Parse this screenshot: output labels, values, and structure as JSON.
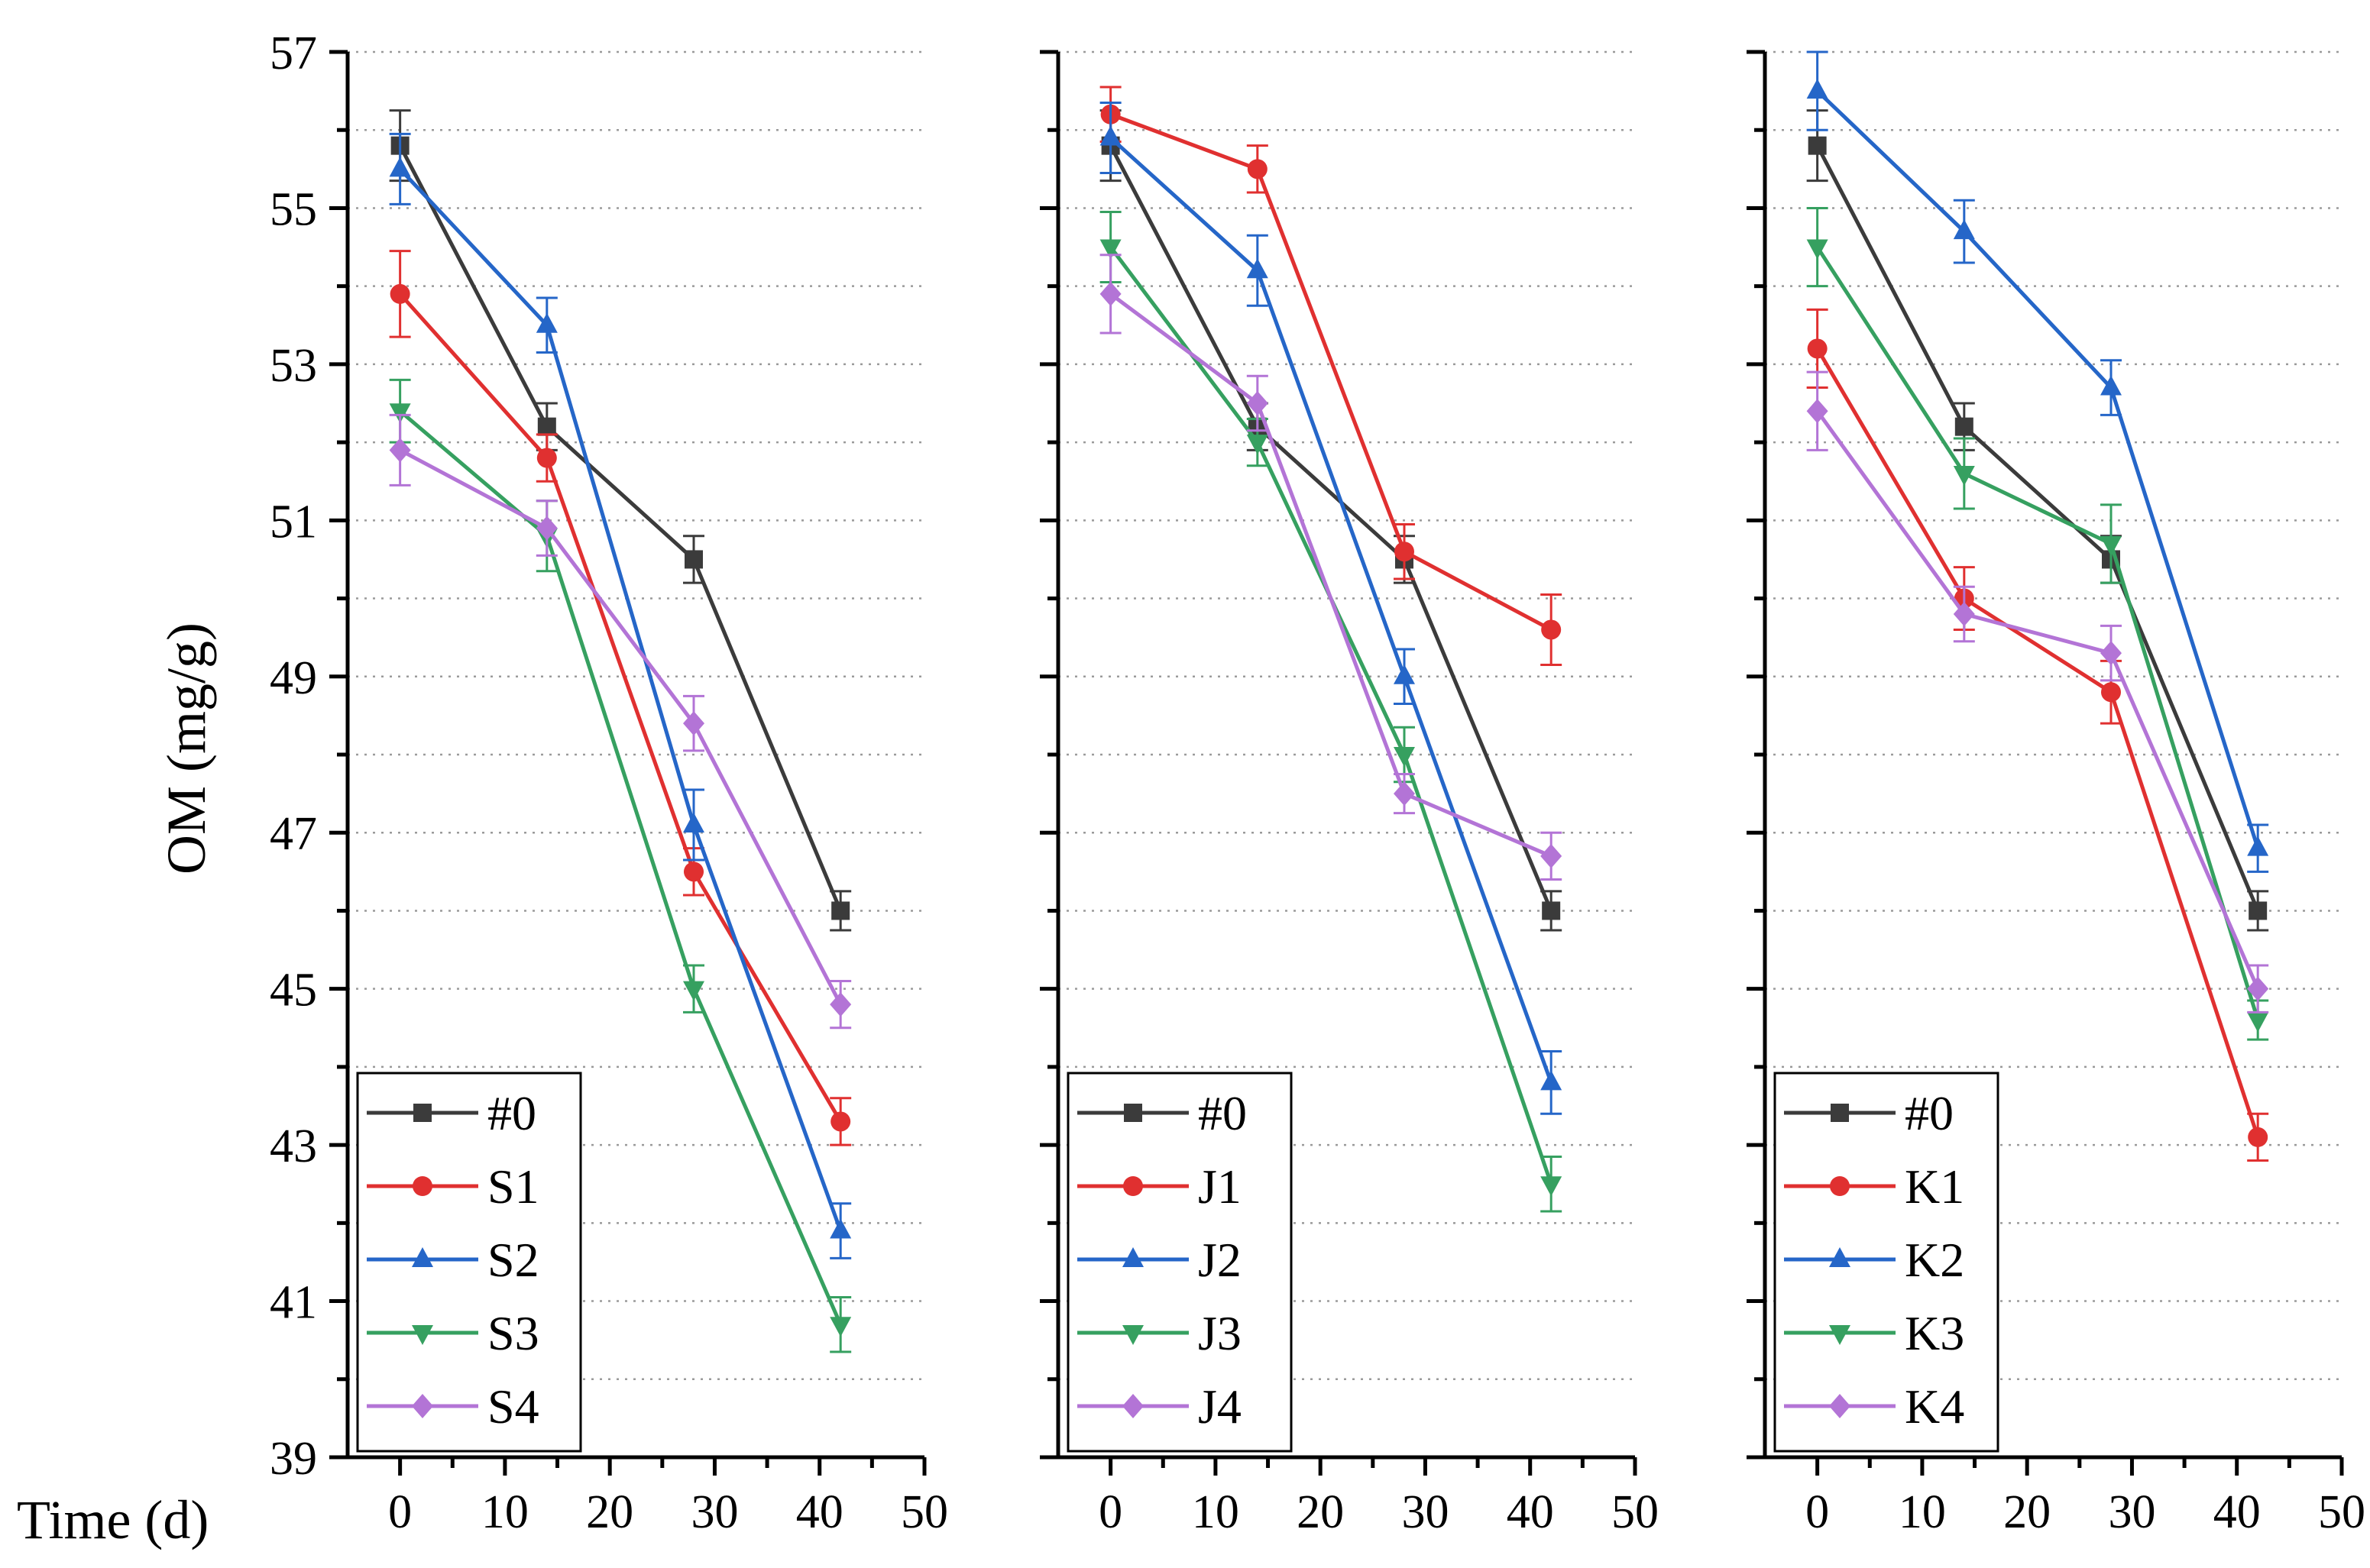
{
  "figure": {
    "ylabel": "OM (mg/g)",
    "xlabel": "Time (d)"
  },
  "chart_data": [
    {
      "type": "line",
      "xlim": [
        -5,
        50
      ],
      "ylim": [
        39,
        57
      ],
      "x_ticks": [
        0,
        10,
        20,
        30,
        40,
        50
      ],
      "y_ticks": [
        39,
        41,
        43,
        45,
        47,
        49,
        51,
        53,
        55,
        57
      ],
      "grid": "horizontal-dotted",
      "legend_position": "bottom-left",
      "series": [
        {
          "name": "#0",
          "color": "#3b3b3b",
          "marker": "square",
          "x": [
            0,
            14,
            28,
            42
          ],
          "y": [
            55.8,
            52.2,
            50.5,
            46.0
          ],
          "err": [
            0.45,
            0.3,
            0.3,
            0.25
          ]
        },
        {
          "name": "S1",
          "color": "#e03030",
          "marker": "circle",
          "x": [
            0,
            14,
            28,
            42
          ],
          "y": [
            53.9,
            51.8,
            46.5,
            43.3
          ],
          "err": [
            0.55,
            0.3,
            0.3,
            0.3
          ]
        },
        {
          "name": "S2",
          "color": "#2566c8",
          "marker": "triangle-up",
          "x": [
            0,
            14,
            28,
            42
          ],
          "y": [
            55.5,
            53.5,
            47.1,
            41.9
          ],
          "err": [
            0.45,
            0.35,
            0.45,
            0.35
          ]
        },
        {
          "name": "S3",
          "color": "#36a060",
          "marker": "triangle-down",
          "x": [
            0,
            14,
            28,
            42
          ],
          "y": [
            52.4,
            50.8,
            45.0,
            40.7
          ],
          "err": [
            0.4,
            0.45,
            0.3,
            0.35
          ]
        },
        {
          "name": "S4",
          "color": "#b374d6",
          "marker": "diamond",
          "x": [
            0,
            14,
            28,
            42
          ],
          "y": [
            51.9,
            50.9,
            48.4,
            44.8
          ],
          "err": [
            0.45,
            0.35,
            0.35,
            0.3
          ]
        }
      ]
    },
    {
      "type": "line",
      "xlim": [
        -5,
        50
      ],
      "ylim": [
        39,
        57
      ],
      "x_ticks": [
        0,
        10,
        20,
        30,
        40,
        50
      ],
      "y_ticks": [
        39,
        41,
        43,
        45,
        47,
        49,
        51,
        53,
        55,
        57
      ],
      "grid": "horizontal-dotted",
      "legend_position": "bottom-left",
      "series": [
        {
          "name": "#0",
          "color": "#3b3b3b",
          "marker": "square",
          "x": [
            0,
            14,
            28,
            42
          ],
          "y": [
            55.8,
            52.2,
            50.5,
            46.0
          ],
          "err": [
            0.45,
            0.3,
            0.3,
            0.25
          ]
        },
        {
          "name": "J1",
          "color": "#e03030",
          "marker": "circle",
          "x": [
            0,
            14,
            28,
            42
          ],
          "y": [
            56.2,
            55.5,
            50.6,
            49.6
          ],
          "err": [
            0.35,
            0.3,
            0.35,
            0.45
          ]
        },
        {
          "name": "J2",
          "color": "#2566c8",
          "marker": "triangle-up",
          "x": [
            0,
            14,
            28,
            42
          ],
          "y": [
            55.9,
            54.2,
            49.0,
            43.8
          ],
          "err": [
            0.45,
            0.45,
            0.35,
            0.4
          ]
        },
        {
          "name": "J3",
          "color": "#36a060",
          "marker": "triangle-down",
          "x": [
            0,
            14,
            28,
            42
          ],
          "y": [
            54.5,
            52.0,
            48.0,
            42.5
          ],
          "err": [
            0.45,
            0.3,
            0.35,
            0.35
          ]
        },
        {
          "name": "J4",
          "color": "#b374d6",
          "marker": "diamond",
          "x": [
            0,
            14,
            28,
            42
          ],
          "y": [
            53.9,
            52.5,
            47.5,
            46.7
          ],
          "err": [
            0.5,
            0.35,
            0.25,
            0.3
          ]
        }
      ]
    },
    {
      "type": "line",
      "xlim": [
        -5,
        50
      ],
      "ylim": [
        39,
        57
      ],
      "x_ticks": [
        0,
        10,
        20,
        30,
        40,
        50
      ],
      "y_ticks": [
        39,
        41,
        43,
        45,
        47,
        49,
        51,
        53,
        55,
        57
      ],
      "grid": "horizontal-dotted",
      "legend_position": "bottom-left",
      "series": [
        {
          "name": "#0",
          "color": "#3b3b3b",
          "marker": "square",
          "x": [
            0,
            14,
            28,
            42
          ],
          "y": [
            55.8,
            52.2,
            50.5,
            46.0
          ],
          "err": [
            0.45,
            0.3,
            0.3,
            0.25
          ]
        },
        {
          "name": "K1",
          "color": "#e03030",
          "marker": "circle",
          "x": [
            0,
            14,
            28,
            42
          ],
          "y": [
            53.2,
            50.0,
            48.8,
            43.1
          ],
          "err": [
            0.5,
            0.4,
            0.4,
            0.3
          ]
        },
        {
          "name": "K2",
          "color": "#2566c8",
          "marker": "triangle-up",
          "x": [
            0,
            14,
            28,
            42
          ],
          "y": [
            56.5,
            54.7,
            52.7,
            46.8
          ],
          "err": [
            0.5,
            0.4,
            0.35,
            0.3
          ]
        },
        {
          "name": "K3",
          "color": "#36a060",
          "marker": "triangle-down",
          "x": [
            0,
            14,
            28,
            42
          ],
          "y": [
            54.5,
            51.6,
            50.7,
            44.6
          ],
          "err": [
            0.5,
            0.45,
            0.5,
            0.25
          ]
        },
        {
          "name": "K4",
          "color": "#b374d6",
          "marker": "diamond",
          "x": [
            0,
            14,
            28,
            42
          ],
          "y": [
            52.4,
            49.8,
            49.3,
            45.0
          ],
          "err": [
            0.5,
            0.35,
            0.35,
            0.3
          ]
        }
      ]
    }
  ]
}
